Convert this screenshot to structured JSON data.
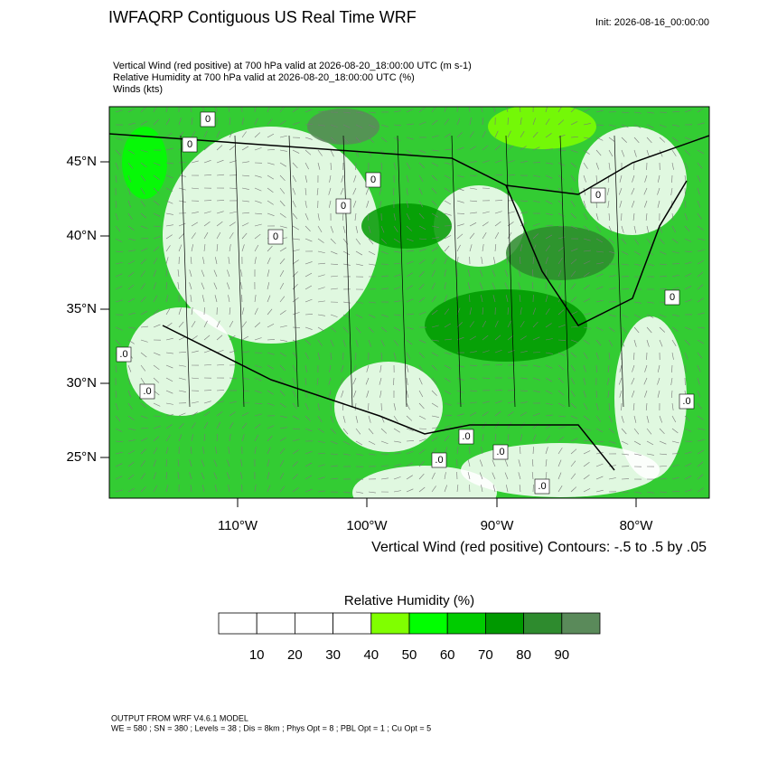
{
  "header": {
    "title": "IWFAQRP Contiguous US Real Time WRF",
    "init": "Init: 2026-08-16_00:00:00"
  },
  "subtitle_lines": [
    "Vertical Wind (red positive) at 700 hPa valid at 2026-08-20_18:00:00 UTC   (m s-1)",
    "Relative Humidity at 700 hPa valid at 2026-08-20_18:00:00 UTC   (%)",
    "Winds   (kts)"
  ],
  "map": {
    "lat_labels": [
      "45°N",
      "40°N",
      "35°N",
      "30°N",
      "25°N"
    ],
    "lon_labels": [
      "110°W",
      "100°W",
      "90°W",
      "80°W"
    ],
    "contour_labels": [
      ".0",
      "0",
      "0",
      "0",
      "0",
      ".0",
      "0",
      ".0",
      ".0",
      "0",
      ".0",
      ".0",
      ".0",
      "0"
    ],
    "contour_note": "Vertical Wind (red positive) Contours: -.5 to .5 by .05"
  },
  "colorbar": {
    "title": "Relative Humidity  (%)",
    "colors": [
      "#ffffff",
      "#ffffff",
      "#ffffff",
      "#ffffff",
      "#80ff00",
      "#00ff00",
      "#00cc00",
      "#009900",
      "#2e8b2e",
      "#5a8a5a"
    ],
    "ticks": [
      10,
      20,
      30,
      40,
      50,
      60,
      70,
      80,
      90
    ]
  },
  "footer": {
    "lines": [
      "OUTPUT FROM WRF V4.6.1 MODEL",
      "WE = 580 ; SN = 380 ; Levels = 38 ; Dis = 8km ; Phys Opt = 8 ; PBL Opt = 1 ; Cu Opt = 5"
    ]
  }
}
